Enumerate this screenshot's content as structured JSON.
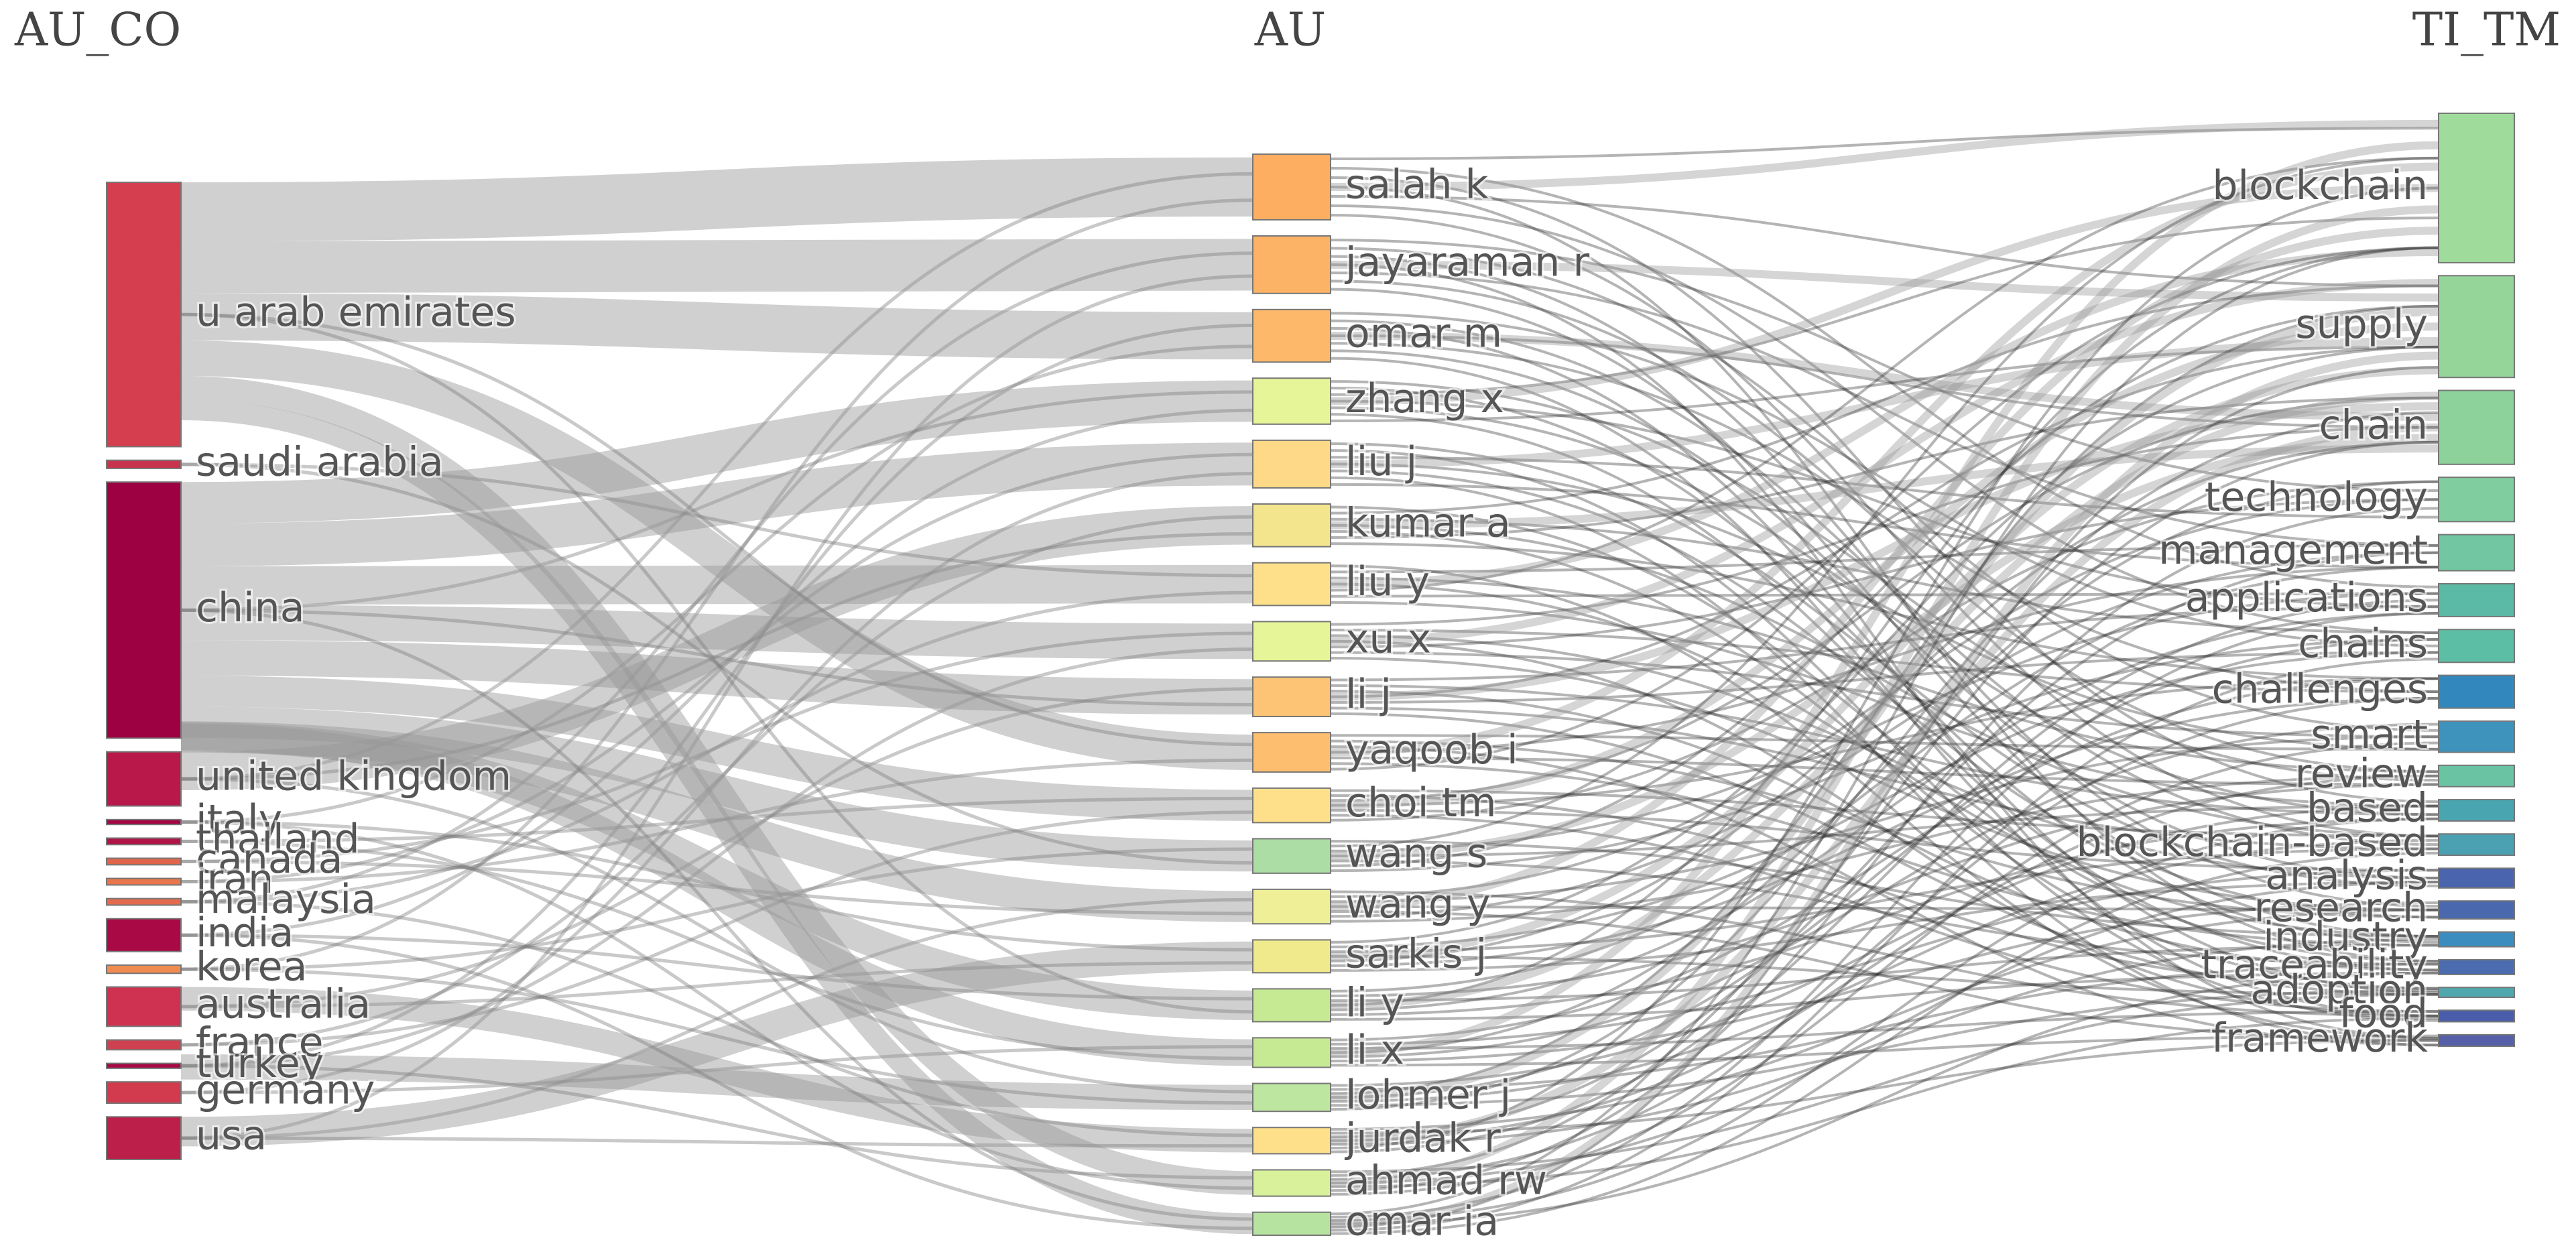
{
  "chart_data": {
    "type": "sankey",
    "columns": [
      {
        "title": "AU_CO",
        "nodes": [
          {
            "name": "u arab emirates",
            "value": 161,
            "color": "#d53e4f"
          },
          {
            "name": "saudi arabia",
            "value": 5,
            "color": "#c8344e"
          },
          {
            "name": "china",
            "value": 156,
            "color": "#9e0142"
          },
          {
            "name": "united kingdom",
            "value": 33,
            "color": "#b8184a"
          },
          {
            "name": "italy",
            "value": 3,
            "color": "#a30644"
          },
          {
            "name": "thailand",
            "value": 4,
            "color": "#b01446"
          },
          {
            "name": "canada",
            "value": 4,
            "color": "#e0654b"
          },
          {
            "name": "iran",
            "value": 4,
            "color": "#e8754b"
          },
          {
            "name": "malaysia",
            "value": 4,
            "color": "#e36a4c"
          },
          {
            "name": "india",
            "value": 20,
            "color": "#a90a45"
          },
          {
            "name": "korea",
            "value": 5,
            "color": "#f08c50"
          },
          {
            "name": "australia",
            "value": 24,
            "color": "#cf3150"
          },
          {
            "name": "france",
            "value": 6,
            "color": "#cf4150"
          },
          {
            "name": "turkey",
            "value": 3,
            "color": "#a50a44"
          },
          {
            "name": "germany",
            "value": 13,
            "color": "#d23a4e"
          },
          {
            "name": "usa",
            "value": 26,
            "color": "#bc1f4a"
          }
        ]
      },
      {
        "title": "AU",
        "nodes": [
          {
            "name": "salah k",
            "value": 40,
            "color": "#fdae61"
          },
          {
            "name": "jayaraman r",
            "value": 35,
            "color": "#fdb366"
          },
          {
            "name": "omar m",
            "value": 32,
            "color": "#fdb86a"
          },
          {
            "name": "zhang x",
            "value": 28,
            "color": "#e6f598"
          },
          {
            "name": "liu j",
            "value": 29,
            "color": "#fed987"
          },
          {
            "name": "kumar a",
            "value": 26,
            "color": "#f3e48e"
          },
          {
            "name": "liu y",
            "value": 26,
            "color": "#fee08b"
          },
          {
            "name": "xu x",
            "value": 24,
            "color": "#e6f598"
          },
          {
            "name": "li j",
            "value": 24,
            "color": "#fdc475"
          },
          {
            "name": "yaqoob i",
            "value": 24,
            "color": "#fdbf6f"
          },
          {
            "name": "choi tm",
            "value": 21,
            "color": "#fee08b"
          },
          {
            "name": "wang s",
            "value": 21,
            "color": "#abdda4"
          },
          {
            "name": "wang y",
            "value": 21,
            "color": "#eeef96"
          },
          {
            "name": "sarkis j",
            "value": 20,
            "color": "#f0ea8c"
          },
          {
            "name": "li y",
            "value": 20,
            "color": "#c6ea94"
          },
          {
            "name": "li x",
            "value": 18,
            "color": "#c6ea94"
          },
          {
            "name": "lohmer j",
            "value": 17,
            "color": "#bde6a0"
          },
          {
            "name": "jurdak r",
            "value": 16,
            "color": "#fee08b"
          },
          {
            "name": "ahmad rw",
            "value": 16,
            "color": "#d9f19a"
          },
          {
            "name": "omar ia",
            "value": 14,
            "color": "#b7e3a0"
          }
        ]
      },
      {
        "title": "TI_TM",
        "nodes": [
          {
            "name": "blockchain",
            "value": 91,
            "color": "#9fdc9b"
          },
          {
            "name": "supply",
            "value": 62,
            "color": "#95d59a"
          },
          {
            "name": "chain",
            "value": 45,
            "color": "#8ed29b"
          },
          {
            "name": "technology",
            "value": 27,
            "color": "#80cda0"
          },
          {
            "name": "management",
            "value": 22,
            "color": "#72c7a2"
          },
          {
            "name": "applications",
            "value": 20,
            "color": "#5bbaa5"
          },
          {
            "name": "chains",
            "value": 20,
            "color": "#5cbea4"
          },
          {
            "name": "challenges",
            "value": 20,
            "color": "#3288bd"
          },
          {
            "name": "smart",
            "value": 19,
            "color": "#3d93bc"
          },
          {
            "name": "review",
            "value": 13,
            "color": "#6ac3a3"
          },
          {
            "name": "based",
            "value": 13,
            "color": "#49a5b0"
          },
          {
            "name": "blockchain-based",
            "value": 13,
            "color": "#4ba1b2"
          },
          {
            "name": "analysis",
            "value": 12,
            "color": "#4b64ae"
          },
          {
            "name": "research",
            "value": 11,
            "color": "#4a68ad"
          },
          {
            "name": "industry",
            "value": 9,
            "color": "#3b8cbf"
          },
          {
            "name": "traceability",
            "value": 9,
            "color": "#4b6db0"
          },
          {
            "name": "adoption",
            "value": 6,
            "color": "#4fa8ae"
          },
          {
            "name": "food",
            "value": 7,
            "color": "#4a5daa"
          },
          {
            "name": "framework",
            "value": 7,
            "color": "#5560a8"
          }
        ]
      }
    ]
  }
}
